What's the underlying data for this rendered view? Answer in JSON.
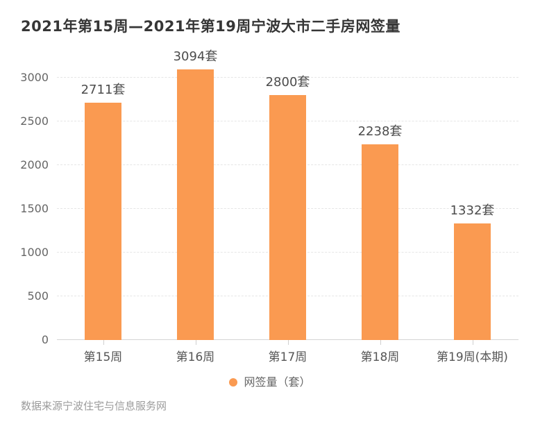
{
  "title": "2021年第15周—2021年第19周宁波大市二手房网签量",
  "footer": "数据来源宁波住宅与信息服务网",
  "chart_data": {
    "type": "bar",
    "title": "2021年第15周—2021年第19周宁波大市二手房网签量",
    "categories": [
      "第15周",
      "第16周",
      "第17周",
      "第18周",
      "第19周(本期)"
    ],
    "values": [
      2711,
      3094,
      2800,
      2238,
      1332
    ],
    "data_labels": [
      "2711套",
      "3094套",
      "2800套",
      "2238套",
      "1332套"
    ],
    "legend": "网签量（套）",
    "unit": "套",
    "xlabel": "",
    "ylabel": "",
    "ylim": [
      0,
      3100
    ],
    "yticks": [
      0,
      500,
      1000,
      1500,
      2000,
      2500,
      3000
    ],
    "grid": "dashed horizontal",
    "legend_position": "bottom",
    "bar_color": "#FA9A51",
    "source_note": "数据来源宁波住宅与信息服务网"
  }
}
